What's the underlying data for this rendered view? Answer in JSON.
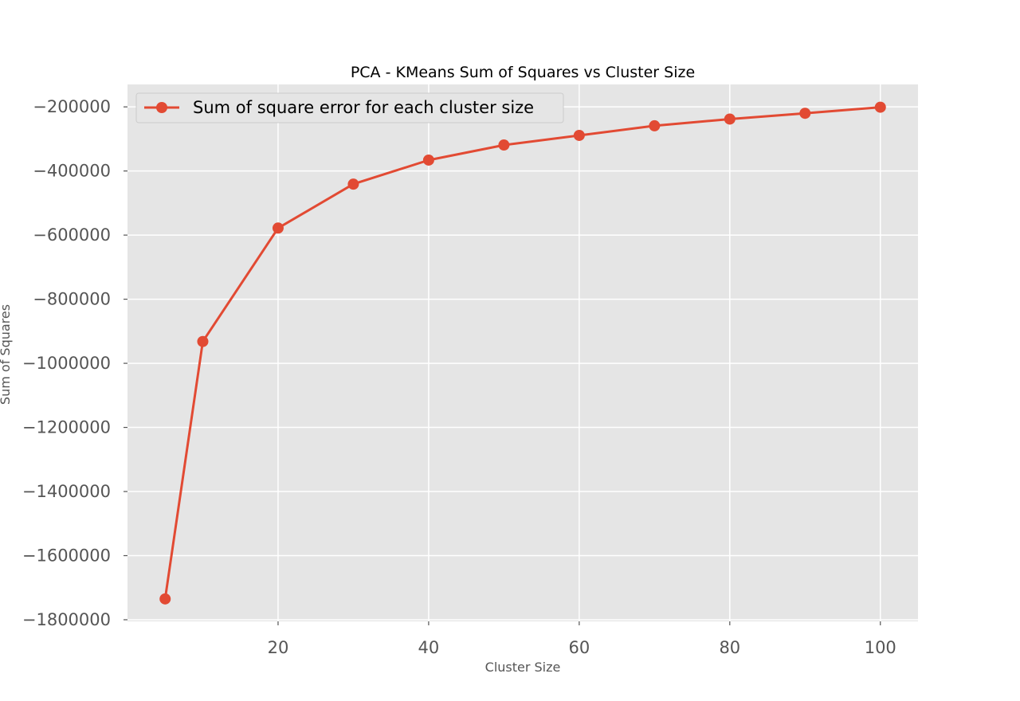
{
  "chart_data": {
    "type": "line",
    "title": "PCA - KMeans Sum of Squares vs Cluster Size",
    "xlabel": "Cluster Size",
    "ylabel": "Sum of Squares",
    "xlim": [
      0,
      105
    ],
    "ylim": [
      -1805000,
      -130000
    ],
    "xticks": [
      20,
      40,
      60,
      80,
      100
    ],
    "yticks": [
      -200000,
      -400000,
      -600000,
      -800000,
      -1000000,
      -1200000,
      -1400000,
      -1600000,
      -1800000
    ],
    "xtick_labels": [
      "20",
      "40",
      "60",
      "80",
      "100"
    ],
    "ytick_labels": [
      "−200000",
      "−400000",
      "−600000",
      "−800000",
      "−1000000",
      "−1200000",
      "−1400000",
      "−1600000",
      "−1800000"
    ],
    "grid": true,
    "legend_position": "top-left",
    "series": [
      {
        "name": "Sum of square error for each cluster size",
        "color": "#e24a33",
        "x": [
          5,
          10,
          20,
          30,
          40,
          50,
          60,
          70,
          80,
          90,
          100
        ],
        "y": [
          -1735000,
          -932000,
          -578000,
          -441000,
          -366000,
          -319000,
          -289000,
          -259000,
          -238000,
          -220000,
          -201000
        ]
      }
    ]
  }
}
